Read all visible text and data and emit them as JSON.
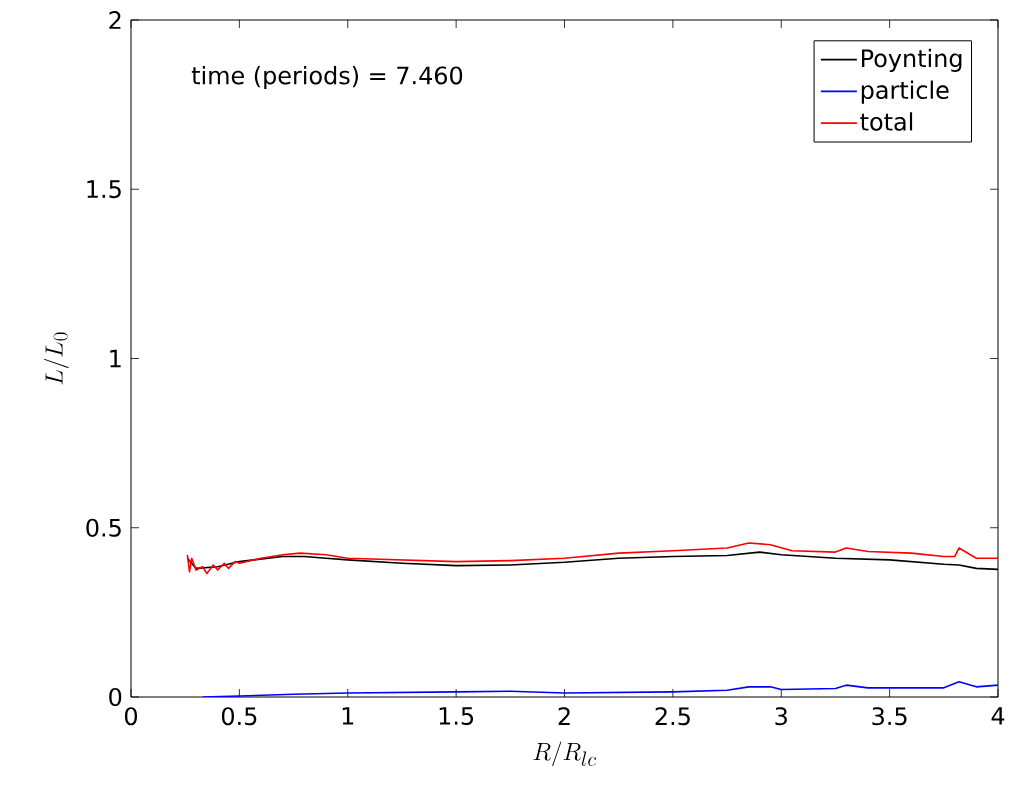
{
  "chart_data": {
    "type": "line",
    "xlabel": "R/R_{lc}",
    "ylabel": "L/L_0",
    "annotations": [
      "time (periods) = 7.460"
    ],
    "xlim": [
      0,
      4
    ],
    "ylim": [
      0,
      2
    ],
    "xticks": [
      0,
      0.5,
      1,
      1.5,
      2,
      2.5,
      3,
      3.5,
      4
    ],
    "yticks": [
      0,
      0.5,
      1,
      1.5,
      2
    ],
    "legend": "top right",
    "grid": false,
    "series": [
      {
        "name": "Poynting",
        "color": "#000000",
        "x": [
          0.26,
          0.3,
          0.4,
          0.5,
          0.6,
          0.7,
          0.8,
          0.9,
          1.0,
          1.25,
          1.5,
          1.75,
          2.0,
          2.25,
          2.5,
          2.75,
          2.9,
          3.0,
          3.25,
          3.5,
          3.75,
          3.82,
          3.9,
          4.0
        ],
        "values": [
          0.41,
          0.38,
          0.385,
          0.4,
          null,
          0.415,
          0.415,
          0.41,
          0.405,
          0.395,
          0.388,
          0.39,
          0.398,
          0.41,
          0.415,
          0.418,
          0.428,
          0.42,
          0.41,
          0.405,
          0.392,
          0.39,
          0.38,
          0.377
        ]
      },
      {
        "name": "particle",
        "color": "#0000ff",
        "x": [
          0.33,
          0.5,
          0.75,
          1.0,
          1.5,
          1.75,
          2.0,
          2.5,
          2.75,
          2.85,
          2.95,
          3.0,
          3.25,
          3.3,
          3.4,
          3.75,
          3.82,
          3.9,
          4.0
        ],
        "values": [
          0.0,
          0.003,
          0.008,
          0.012,
          0.015,
          0.017,
          0.012,
          0.015,
          0.02,
          0.03,
          0.03,
          0.022,
          0.025,
          0.035,
          0.027,
          0.027,
          0.045,
          0.03,
          0.035
        ]
      },
      {
        "name": "total",
        "color": "#ff0000",
        "x": [
          0.26,
          0.27,
          0.28,
          0.3,
          0.33,
          0.35,
          0.38,
          0.4,
          0.43,
          0.45,
          0.48,
          0.5,
          0.6,
          0.7,
          0.78,
          0.9,
          1.0,
          1.25,
          1.5,
          1.75,
          2.0,
          2.25,
          2.5,
          2.75,
          2.85,
          2.95,
          3.05,
          3.25,
          3.3,
          3.4,
          3.6,
          3.75,
          3.8,
          3.82,
          3.9,
          4.0
        ],
        "values": [
          0.42,
          0.37,
          0.41,
          0.375,
          0.385,
          0.365,
          0.39,
          0.375,
          0.395,
          0.38,
          0.4,
          0.395,
          0.41,
          0.42,
          0.425,
          0.42,
          0.41,
          0.405,
          0.4,
          0.403,
          0.41,
          0.425,
          0.432,
          0.44,
          0.455,
          0.45,
          0.432,
          0.428,
          0.44,
          0.43,
          0.425,
          0.415,
          0.415,
          0.44,
          0.41,
          0.41
        ]
      }
    ]
  }
}
